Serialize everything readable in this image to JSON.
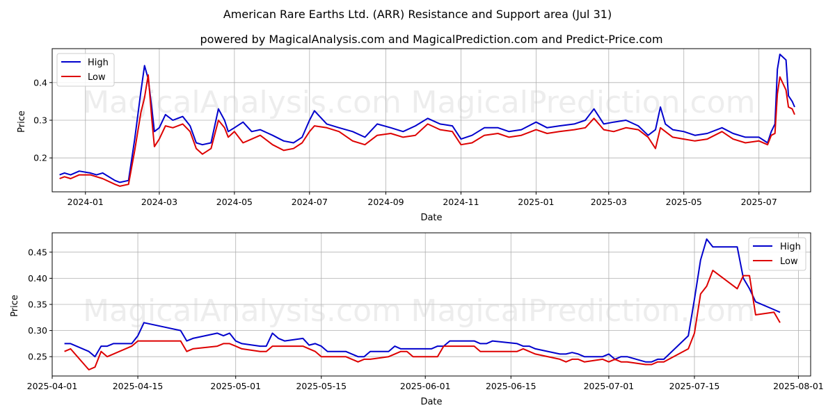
{
  "title": "American Rare Earths Ltd. (ARR) Resistance and Support area (Jul 31)",
  "subtitle": "powered by MagicalAnalysis.com and MagicalPrediction.com and Predict-Price.com",
  "watermarks": [
    "MagicalAnalysis.com",
    "MagicalPrediction.com"
  ],
  "colors": {
    "high": "#0000cc",
    "low": "#dd0000",
    "grid": "#b0b0b0"
  },
  "chart_data": [
    {
      "type": "line",
      "xlabel": "Date",
      "ylabel": "Price",
      "xlim": [
        "2023-12-05",
        "2025-08-12"
      ],
      "ylim": [
        0.11,
        0.49
      ],
      "xticks": [
        "2024-01-01",
        "2024-03-01",
        "2024-05-01",
        "2024-07-01",
        "2024-09-01",
        "2024-11-01",
        "2025-01-01",
        "2025-03-01",
        "2025-05-01",
        "2025-07-01"
      ],
      "xtick_labels": [
        "2024-01",
        "2024-03",
        "2024-05",
        "2024-07",
        "2024-09",
        "2024-11",
        "2025-01",
        "2025-03",
        "2025-05",
        "2025-07"
      ],
      "yticks": [
        0.2,
        0.3,
        0.4
      ],
      "ytick_labels": [
        "0.2",
        "0.3",
        "0.4"
      ],
      "legend": [
        "High",
        "Low"
      ],
      "legend_loc": "upper left",
      "grid": true,
      "series": [
        {
          "name": "High",
          "x": [
            "2023-12-11",
            "2023-12-15",
            "2023-12-20",
            "2023-12-27",
            "2024-01-05",
            "2024-01-10",
            "2024-01-15",
            "2024-01-25",
            "2024-01-29",
            "2024-02-05",
            "2024-02-10",
            "2024-02-15",
            "2024-02-18",
            "2024-02-21",
            "2024-02-24",
            "2024-02-26",
            "2024-03-01",
            "2024-03-06",
            "2024-03-12",
            "2024-03-20",
            "2024-03-26",
            "2024-03-31",
            "2024-04-05",
            "2024-04-12",
            "2024-04-18",
            "2024-04-23",
            "2024-04-26",
            "2024-05-01",
            "2024-05-08",
            "2024-05-15",
            "2024-05-22",
            "2024-06-01",
            "2024-06-10",
            "2024-06-18",
            "2024-06-25",
            "2024-07-01",
            "2024-07-05",
            "2024-07-15",
            "2024-07-25",
            "2024-08-05",
            "2024-08-15",
            "2024-08-25",
            "2024-09-05",
            "2024-09-15",
            "2024-09-25",
            "2024-10-05",
            "2024-10-15",
            "2024-10-25",
            "2024-11-01",
            "2024-11-10",
            "2024-11-20",
            "2024-12-01",
            "2024-12-10",
            "2024-12-20",
            "2025-01-01",
            "2025-01-10",
            "2025-01-20",
            "2025-02-01",
            "2025-02-10",
            "2025-02-17",
            "2025-02-25",
            "2025-03-05",
            "2025-03-15",
            "2025-03-25",
            "2025-04-02",
            "2025-04-08",
            "2025-04-12",
            "2025-04-16",
            "2025-04-22",
            "2025-05-01",
            "2025-05-10",
            "2025-05-20",
            "2025-06-01",
            "2025-06-10",
            "2025-06-20",
            "2025-07-01",
            "2025-07-08",
            "2025-07-11",
            "2025-07-14",
            "2025-07-16",
            "2025-07-18",
            "2025-07-23",
            "2025-07-25",
            "2025-07-28",
            "2025-07-30"
          ],
          "values": [
            0.155,
            0.16,
            0.155,
            0.165,
            0.16,
            0.155,
            0.16,
            0.14,
            0.135,
            0.14,
            0.25,
            0.375,
            0.445,
            0.41,
            0.33,
            0.27,
            0.28,
            0.315,
            0.3,
            0.31,
            0.285,
            0.24,
            0.235,
            0.24,
            0.33,
            0.3,
            0.27,
            0.28,
            0.295,
            0.27,
            0.275,
            0.26,
            0.245,
            0.24,
            0.255,
            0.3,
            0.325,
            0.29,
            0.28,
            0.27,
            0.255,
            0.29,
            0.28,
            0.27,
            0.285,
            0.305,
            0.29,
            0.285,
            0.25,
            0.26,
            0.28,
            0.28,
            0.27,
            0.275,
            0.295,
            0.28,
            0.285,
            0.29,
            0.3,
            0.33,
            0.29,
            0.295,
            0.3,
            0.285,
            0.26,
            0.275,
            0.335,
            0.29,
            0.275,
            0.27,
            0.26,
            0.265,
            0.28,
            0.265,
            0.255,
            0.255,
            0.24,
            0.27,
            0.29,
            0.435,
            0.475,
            0.46,
            0.365,
            0.35,
            0.335
          ]
        },
        {
          "name": "Low",
          "x": [
            "2023-12-11",
            "2023-12-15",
            "2023-12-20",
            "2023-12-27",
            "2024-01-05",
            "2024-01-10",
            "2024-01-15",
            "2024-01-25",
            "2024-01-29",
            "2024-02-05",
            "2024-02-10",
            "2024-02-15",
            "2024-02-18",
            "2024-02-21",
            "2024-02-24",
            "2024-02-26",
            "2024-03-01",
            "2024-03-06",
            "2024-03-12",
            "2024-03-20",
            "2024-03-26",
            "2024-03-31",
            "2024-04-05",
            "2024-04-12",
            "2024-04-18",
            "2024-04-23",
            "2024-04-26",
            "2024-05-01",
            "2024-05-08",
            "2024-05-15",
            "2024-05-22",
            "2024-06-01",
            "2024-06-10",
            "2024-06-18",
            "2024-06-25",
            "2024-07-01",
            "2024-07-05",
            "2024-07-15",
            "2024-07-25",
            "2024-08-05",
            "2024-08-15",
            "2024-08-25",
            "2024-09-05",
            "2024-09-15",
            "2024-09-25",
            "2024-10-05",
            "2024-10-15",
            "2024-10-25",
            "2024-11-01",
            "2024-11-10",
            "2024-11-20",
            "2024-12-01",
            "2024-12-10",
            "2024-12-20",
            "2025-01-01",
            "2025-01-10",
            "2025-01-20",
            "2025-02-01",
            "2025-02-10",
            "2025-02-17",
            "2025-02-25",
            "2025-03-05",
            "2025-03-15",
            "2025-03-25",
            "2025-04-02",
            "2025-04-08",
            "2025-04-12",
            "2025-04-16",
            "2025-04-22",
            "2025-05-01",
            "2025-05-10",
            "2025-05-20",
            "2025-06-01",
            "2025-06-10",
            "2025-06-20",
            "2025-07-01",
            "2025-07-08",
            "2025-07-11",
            "2025-07-14",
            "2025-07-16",
            "2025-07-18",
            "2025-07-23",
            "2025-07-25",
            "2025-07-28",
            "2025-07-30"
          ],
          "values": [
            0.145,
            0.15,
            0.145,
            0.155,
            0.155,
            0.15,
            0.145,
            0.13,
            0.125,
            0.13,
            0.22,
            0.32,
            0.36,
            0.42,
            0.3,
            0.23,
            0.25,
            0.285,
            0.28,
            0.29,
            0.27,
            0.225,
            0.21,
            0.225,
            0.3,
            0.28,
            0.255,
            0.27,
            0.24,
            0.25,
            0.26,
            0.235,
            0.22,
            0.225,
            0.24,
            0.27,
            0.285,
            0.28,
            0.27,
            0.245,
            0.235,
            0.26,
            0.265,
            0.255,
            0.26,
            0.29,
            0.275,
            0.27,
            0.235,
            0.24,
            0.26,
            0.265,
            0.255,
            0.26,
            0.275,
            0.265,
            0.27,
            0.275,
            0.28,
            0.305,
            0.275,
            0.27,
            0.28,
            0.275,
            0.255,
            0.225,
            0.28,
            0.27,
            0.255,
            0.25,
            0.245,
            0.25,
            0.27,
            0.25,
            0.24,
            0.245,
            0.235,
            0.26,
            0.265,
            0.37,
            0.415,
            0.38,
            0.335,
            0.33,
            0.315
          ]
        }
      ]
    },
    {
      "type": "line",
      "xlabel": "Date",
      "ylabel": "Price",
      "xlim": [
        "2025-04-01",
        "2025-08-03"
      ],
      "ylim": [
        0.213,
        0.487
      ],
      "xticks": [
        "2025-04-01",
        "2025-04-15",
        "2025-05-01",
        "2025-05-15",
        "2025-06-01",
        "2025-06-15",
        "2025-07-01",
        "2025-07-15",
        "2025-08-01"
      ],
      "xtick_labels": [
        "2025-04-01",
        "2025-04-15",
        "2025-05-01",
        "2025-05-15",
        "2025-06-01",
        "2025-06-15",
        "2025-07-01",
        "2025-07-15",
        "2025-08-01"
      ],
      "yticks": [
        0.25,
        0.3,
        0.35,
        0.4,
        0.45
      ],
      "ytick_labels": [
        "0.25",
        "0.30",
        "0.35",
        "0.40",
        "0.45"
      ],
      "legend": [
        "High",
        "Low"
      ],
      "legend_loc": "upper right",
      "grid": true,
      "series": [
        {
          "name": "High",
          "x": [
            "2025-04-03",
            "2025-04-04",
            "2025-04-07",
            "2025-04-08",
            "2025-04-09",
            "2025-04-10",
            "2025-04-11",
            "2025-04-14",
            "2025-04-15",
            "2025-04-16",
            "2025-04-22",
            "2025-04-23",
            "2025-04-24",
            "2025-04-28",
            "2025-04-29",
            "2025-04-30",
            "2025-05-01",
            "2025-05-02",
            "2025-05-05",
            "2025-05-06",
            "2025-05-07",
            "2025-05-08",
            "2025-05-09",
            "2025-05-12",
            "2025-05-13",
            "2025-05-14",
            "2025-05-15",
            "2025-05-16",
            "2025-05-19",
            "2025-05-20",
            "2025-05-21",
            "2025-05-22",
            "2025-05-23",
            "2025-05-26",
            "2025-05-27",
            "2025-05-28",
            "2025-05-29",
            "2025-05-30",
            "2025-06-02",
            "2025-06-03",
            "2025-06-04",
            "2025-06-05",
            "2025-06-09",
            "2025-06-10",
            "2025-06-11",
            "2025-06-12",
            "2025-06-16",
            "2025-06-17",
            "2025-06-18",
            "2025-06-19",
            "2025-06-23",
            "2025-06-24",
            "2025-06-25",
            "2025-06-26",
            "2025-06-27",
            "2025-06-30",
            "2025-07-01",
            "2025-07-02",
            "2025-07-03",
            "2025-07-04",
            "2025-07-07",
            "2025-07-08",
            "2025-07-09",
            "2025-07-10",
            "2025-07-14",
            "2025-07-15",
            "2025-07-16",
            "2025-07-17",
            "2025-07-18",
            "2025-07-22",
            "2025-07-23",
            "2025-07-24",
            "2025-07-25",
            "2025-07-28",
            "2025-07-29"
          ],
          "values": [
            0.275,
            0.275,
            0.26,
            0.25,
            0.27,
            0.27,
            0.275,
            0.275,
            0.29,
            0.315,
            0.3,
            0.28,
            0.285,
            0.295,
            0.29,
            0.295,
            0.28,
            0.275,
            0.27,
            0.27,
            0.295,
            0.285,
            0.28,
            0.285,
            0.272,
            0.275,
            0.27,
            0.26,
            0.26,
            0.255,
            0.25,
            0.25,
            0.26,
            0.26,
            0.27,
            0.265,
            0.265,
            0.265,
            0.265,
            0.27,
            0.27,
            0.28,
            0.28,
            0.275,
            0.275,
            0.28,
            0.275,
            0.27,
            0.27,
            0.265,
            0.255,
            0.255,
            0.258,
            0.255,
            0.25,
            0.25,
            0.255,
            0.245,
            0.25,
            0.25,
            0.24,
            0.24,
            0.245,
            0.245,
            0.29,
            0.36,
            0.435,
            0.475,
            0.46,
            0.46,
            0.4,
            0.38,
            0.355,
            0.34,
            0.335
          ]
        },
        {
          "name": "Low",
          "x": [
            "2025-04-03",
            "2025-04-04",
            "2025-04-07",
            "2025-04-08",
            "2025-04-09",
            "2025-04-10",
            "2025-04-11",
            "2025-04-14",
            "2025-04-15",
            "2025-04-16",
            "2025-04-22",
            "2025-04-23",
            "2025-04-24",
            "2025-04-28",
            "2025-04-29",
            "2025-04-30",
            "2025-05-01",
            "2025-05-02",
            "2025-05-05",
            "2025-05-06",
            "2025-05-07",
            "2025-05-08",
            "2025-05-09",
            "2025-05-12",
            "2025-05-13",
            "2025-05-14",
            "2025-05-15",
            "2025-05-16",
            "2025-05-19",
            "2025-05-20",
            "2025-05-21",
            "2025-05-22",
            "2025-05-23",
            "2025-05-26",
            "2025-05-27",
            "2025-05-28",
            "2025-05-29",
            "2025-05-30",
            "2025-06-02",
            "2025-06-03",
            "2025-06-04",
            "2025-06-05",
            "2025-06-09",
            "2025-06-10",
            "2025-06-11",
            "2025-06-12",
            "2025-06-16",
            "2025-06-17",
            "2025-06-18",
            "2025-06-19",
            "2025-06-23",
            "2025-06-24",
            "2025-06-25",
            "2025-06-26",
            "2025-06-27",
            "2025-06-30",
            "2025-07-01",
            "2025-07-02",
            "2025-07-03",
            "2025-07-04",
            "2025-07-07",
            "2025-07-08",
            "2025-07-09",
            "2025-07-10",
            "2025-07-14",
            "2025-07-15",
            "2025-07-16",
            "2025-07-17",
            "2025-07-18",
            "2025-07-22",
            "2025-07-23",
            "2025-07-24",
            "2025-07-25",
            "2025-07-28",
            "2025-07-29"
          ],
          "values": [
            0.26,
            0.265,
            0.225,
            0.23,
            0.26,
            0.25,
            0.255,
            0.27,
            0.28,
            0.28,
            0.28,
            0.26,
            0.265,
            0.27,
            0.275,
            0.275,
            0.27,
            0.265,
            0.26,
            0.26,
            0.27,
            0.27,
            0.27,
            0.27,
            0.265,
            0.26,
            0.25,
            0.25,
            0.25,
            0.245,
            0.24,
            0.245,
            0.245,
            0.25,
            0.255,
            0.26,
            0.26,
            0.25,
            0.25,
            0.25,
            0.27,
            0.27,
            0.27,
            0.26,
            0.26,
            0.26,
            0.26,
            0.265,
            0.26,
            0.255,
            0.245,
            0.24,
            0.245,
            0.245,
            0.24,
            0.245,
            0.24,
            0.245,
            0.24,
            0.24,
            0.235,
            0.235,
            0.24,
            0.24,
            0.265,
            0.295,
            0.37,
            0.385,
            0.415,
            0.38,
            0.405,
            0.405,
            0.33,
            0.335,
            0.315
          ]
        }
      ]
    }
  ]
}
